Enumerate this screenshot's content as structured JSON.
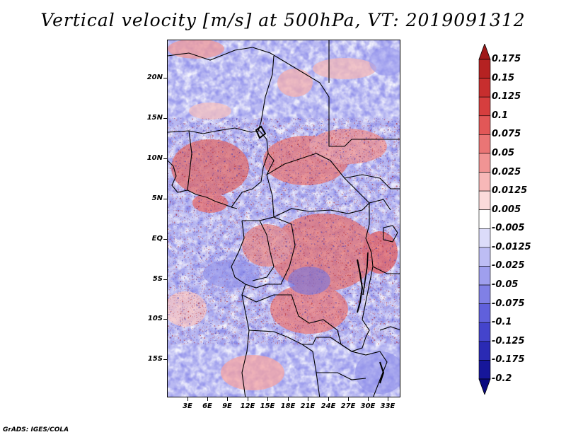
{
  "title": "Vertical velocity [m/s] at 500hPa, VT: 2019091312",
  "footer": "GrADS: IGES/COLA",
  "colors": {
    "deep_red": "#9b1b1b",
    "red": "#d9403a",
    "pink": "#f4a7a7",
    "white": "#ffffff",
    "lavender": "#c7c7f5",
    "blue": "#6666e0",
    "deep_blue": "#1a1a9e"
  },
  "map": {
    "y_axis_labels": [
      "20N",
      "15N",
      "10N",
      "5N",
      "EQ",
      "5S",
      "10S",
      "15S"
    ],
    "x_axis_labels": [
      "3E",
      "6E",
      "9E",
      "12E",
      "15E",
      "18E",
      "21E",
      "24E",
      "27E",
      "30E",
      "33E"
    ]
  },
  "colorbar": {
    "levels": [
      "0.175",
      "0.15",
      "0.125",
      "0.1",
      "0.075",
      "0.05",
      "0.025",
      "0.0125",
      "0.005",
      "-0.005",
      "-0.0125",
      "-0.025",
      "-0.05",
      "-0.075",
      "-0.1",
      "-0.125",
      "-0.175",
      "-0.2"
    ],
    "segment_colors": [
      "#a01a1a",
      "#b52222",
      "#c72e2e",
      "#d63e3e",
      "#e25757",
      "#ea7575",
      "#f19494",
      "#f7b8b8",
      "#fbdada",
      "#ffffff",
      "#dcdcfa",
      "#bdbdf4",
      "#9f9fee",
      "#8080e6",
      "#6060dc",
      "#4444cc",
      "#2a2ab4",
      "#16169a",
      "#0a0a80"
    ]
  }
}
